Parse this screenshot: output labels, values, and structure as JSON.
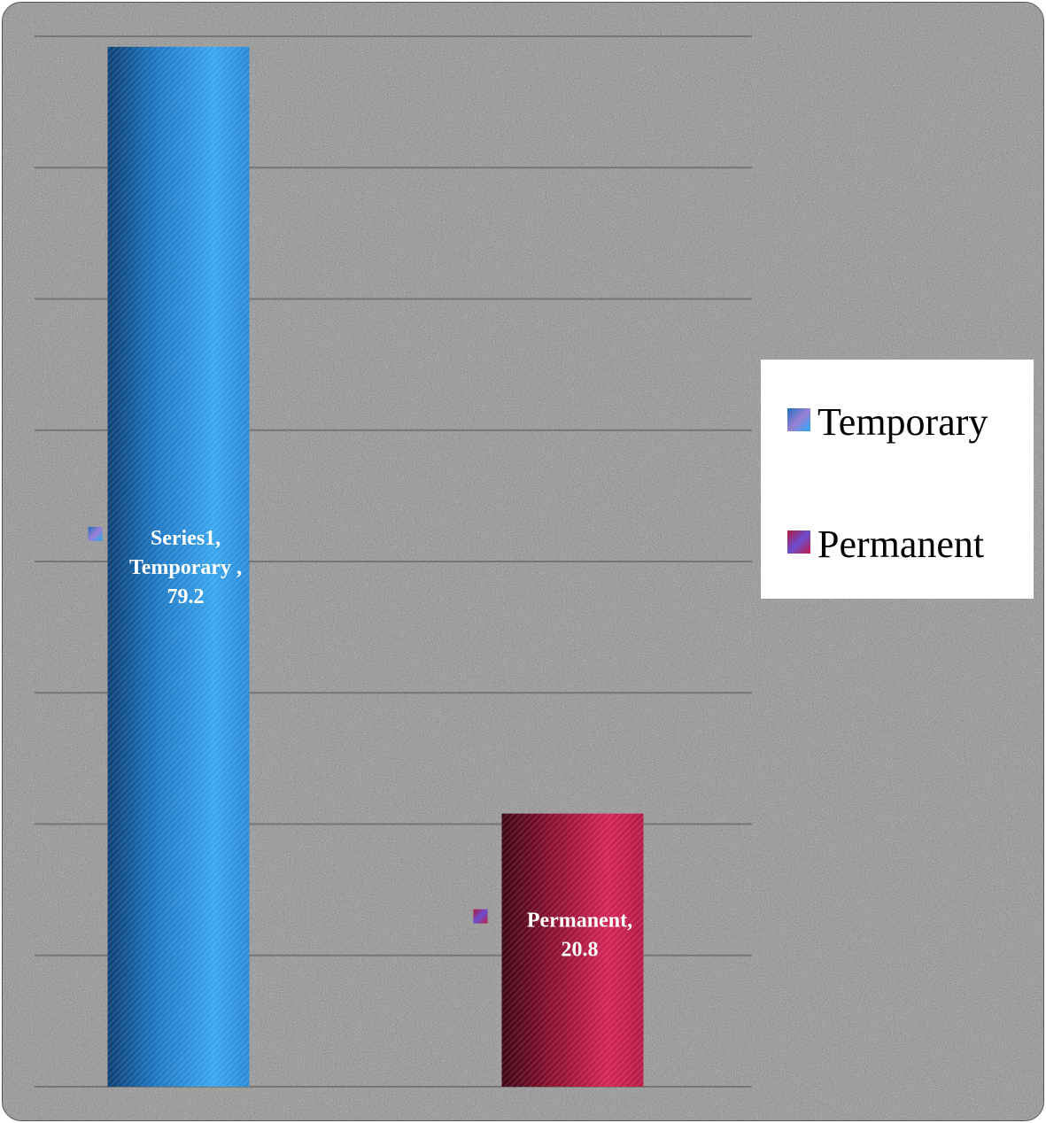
{
  "chart_data": {
    "type": "bar",
    "categories": [
      "Temporary",
      "Permanent"
    ],
    "series": [
      {
        "values": [
          79.2,
          20.8
        ]
      }
    ],
    "data_labels": [
      {
        "lines": [
          "Series1,",
          "Temporary ,",
          "79.2"
        ]
      },
      {
        "lines": [
          "Permanent,",
          "20.8"
        ]
      }
    ],
    "legend": {
      "position": "right",
      "entries": [
        "Temporary",
        "Permanent"
      ]
    },
    "ylim": [
      0,
      80
    ],
    "gridlines": true,
    "colors": {
      "Temporary": "#2a8fd8",
      "Permanent": "#b3173f"
    }
  }
}
